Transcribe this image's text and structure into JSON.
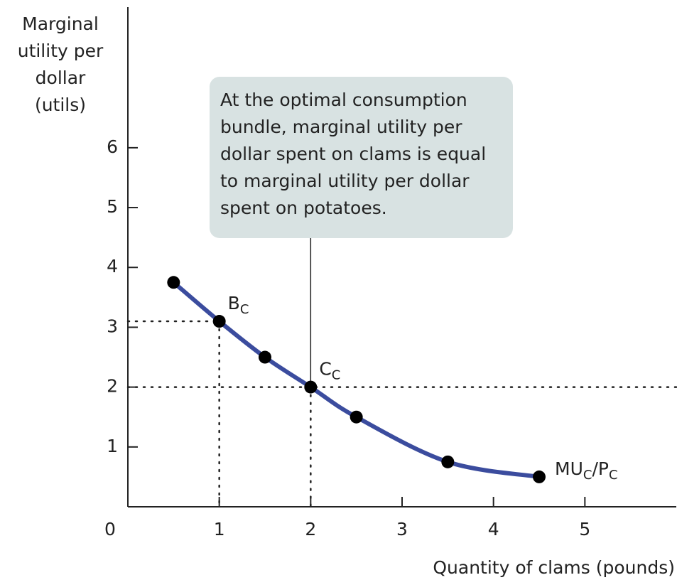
{
  "chart_data": {
    "type": "line",
    "y_axis_label": [
      "Marginal",
      "utility per",
      "dollar",
      "(utils)"
    ],
    "x_axis_label": "Quantity of clams (pounds)",
    "x": [
      0.5,
      1,
      1.5,
      2,
      2.5,
      3.5,
      4.5
    ],
    "series": [
      {
        "name_parts": [
          {
            "text": "MU"
          },
          {
            "text": "C",
            "sub": true
          },
          {
            "text": "/P"
          },
          {
            "text": "C",
            "sub": true
          }
        ],
        "color": "#3b4c9e",
        "values": [
          3.75,
          3.1,
          2.5,
          2,
          1.5,
          0.75,
          0.5
        ]
      }
    ],
    "point_labels": [
      null,
      {
        "text": "B",
        "sub": "C"
      },
      null,
      {
        "text": "C",
        "sub": "C"
      },
      null,
      null,
      null
    ],
    "annotation": [
      "At the optimal consumption",
      "bundle, marginal utility per",
      "dollar spent on clams is equal",
      "to marginal utility per dollar",
      "spent on potatoes."
    ],
    "xlim": [
      0,
      6
    ],
    "ylim": [
      0,
      8.35
    ],
    "xticks": [
      0,
      1,
      2,
      3,
      4,
      5
    ],
    "yticks": [
      1,
      2,
      3,
      4,
      5,
      6
    ]
  }
}
